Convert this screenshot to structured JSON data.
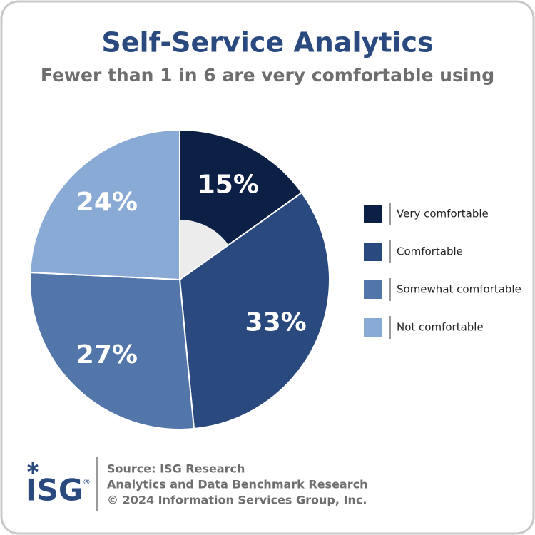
{
  "chart_data": {
    "type": "donut",
    "title": "Self-Service Analytics",
    "subtitle": "Fewer than 1 in 6 are very comfortable using",
    "categories": [
      "Very comfortable",
      "Comfortable",
      "Somewhat comfortable",
      "Not comfortable"
    ],
    "values": [
      15,
      33,
      27,
      24
    ],
    "value_labels": [
      "15%",
      "33%",
      "27%",
      "24%"
    ],
    "colors": [
      "#0c1f45",
      "#2a4a7f",
      "#5376aa",
      "#8aaad6"
    ],
    "legend": "right",
    "source": [
      "Source: ISG Research",
      "Analytics and Data Benchmark Research",
      "© 2024 Information Services Group, Inc."
    ],
    "logo": "ISG",
    "logo_mark": "®"
  }
}
